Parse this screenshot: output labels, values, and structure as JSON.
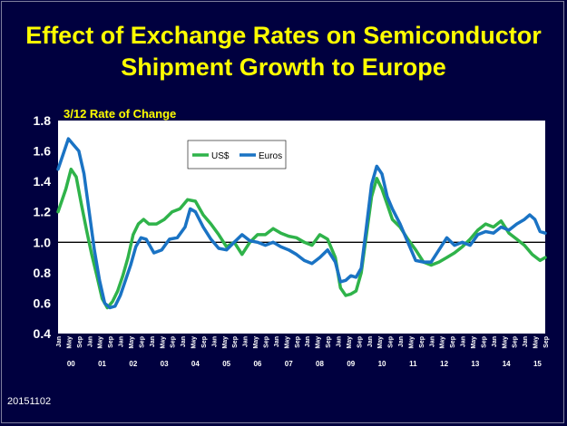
{
  "title_line1": "Effect of Exchange Rates on Semiconductor",
  "title_line2": "Shipment Growth to Europe",
  "footer_code": "20151102",
  "colors": {
    "background": "#00003f",
    "title": "#ffff00",
    "usd": "#2fb34a",
    "euros": "#1a73c4"
  },
  "chart_data": {
    "type": "line",
    "title": "Effect of Exchange Rates on Semiconductor Shipment Growth to Europe",
    "subtitle": "3/12 Rate of Change",
    "ylim": [
      0.4,
      1.8
    ],
    "yticks": [
      "0.4",
      "0.6",
      "0.8",
      "1.0",
      "1.2",
      "1.4",
      "1.6",
      "1.8"
    ],
    "reference_line": 1.0,
    "grid": false,
    "legend_position": "top-left",
    "month_labels": [
      "Jan",
      "May",
      "Sep"
    ],
    "years": [
      "00",
      "01",
      "02",
      "03",
      "04",
      "05",
      "06",
      "07",
      "08",
      "09",
      "10",
      "11",
      "12",
      "13",
      "14",
      "15"
    ],
    "x_start": "2000-01",
    "x_end": "2015-09",
    "series": [
      {
        "name": "US$",
        "points": [
          [
            "2000-01",
            1.2
          ],
          [
            "2000-04",
            1.35
          ],
          [
            "2000-06",
            1.48
          ],
          [
            "2000-08",
            1.43
          ],
          [
            "2000-10",
            1.25
          ],
          [
            "2000-12",
            1.08
          ],
          [
            "2001-02",
            0.92
          ],
          [
            "2001-04",
            0.78
          ],
          [
            "2001-06",
            0.63
          ],
          [
            "2001-08",
            0.57
          ],
          [
            "2001-10",
            0.61
          ],
          [
            "2001-12",
            0.68
          ],
          [
            "2002-02",
            0.78
          ],
          [
            "2002-04",
            0.9
          ],
          [
            "2002-06",
            1.05
          ],
          [
            "2002-08",
            1.12
          ],
          [
            "2002-10",
            1.15
          ],
          [
            "2002-12",
            1.12
          ],
          [
            "2003-03",
            1.12
          ],
          [
            "2003-06",
            1.15
          ],
          [
            "2003-09",
            1.2
          ],
          [
            "2003-12",
            1.22
          ],
          [
            "2004-03",
            1.28
          ],
          [
            "2004-06",
            1.27
          ],
          [
            "2004-09",
            1.18
          ],
          [
            "2004-12",
            1.12
          ],
          [
            "2005-03",
            1.05
          ],
          [
            "2005-06",
            0.97
          ],
          [
            "2005-09",
            1.0
          ],
          [
            "2005-12",
            0.92
          ],
          [
            "2006-03",
            1.0
          ],
          [
            "2006-06",
            1.05
          ],
          [
            "2006-09",
            1.05
          ],
          [
            "2006-12",
            1.09
          ],
          [
            "2007-03",
            1.06
          ],
          [
            "2007-06",
            1.04
          ],
          [
            "2007-09",
            1.03
          ],
          [
            "2007-12",
            1.0
          ],
          [
            "2008-03",
            0.98
          ],
          [
            "2008-06",
            1.05
          ],
          [
            "2008-09",
            1.02
          ],
          [
            "2008-12",
            0.9
          ],
          [
            "2009-02",
            0.7
          ],
          [
            "2009-04",
            0.65
          ],
          [
            "2009-06",
            0.66
          ],
          [
            "2009-08",
            0.68
          ],
          [
            "2009-10",
            0.8
          ],
          [
            "2009-12",
            1.05
          ],
          [
            "2010-02",
            1.3
          ],
          [
            "2010-04",
            1.42
          ],
          [
            "2010-06",
            1.35
          ],
          [
            "2010-08",
            1.25
          ],
          [
            "2010-10",
            1.15
          ],
          [
            "2011-01",
            1.1
          ],
          [
            "2011-04",
            1.02
          ],
          [
            "2011-07",
            0.95
          ],
          [
            "2011-10",
            0.87
          ],
          [
            "2012-01",
            0.85
          ],
          [
            "2012-04",
            0.87
          ],
          [
            "2012-07",
            0.9
          ],
          [
            "2012-10",
            0.93
          ],
          [
            "2013-01",
            0.97
          ],
          [
            "2013-04",
            1.02
          ],
          [
            "2013-07",
            1.08
          ],
          [
            "2013-10",
            1.12
          ],
          [
            "2014-01",
            1.1
          ],
          [
            "2014-04",
            1.14
          ],
          [
            "2014-07",
            1.06
          ],
          [
            "2014-10",
            1.02
          ],
          [
            "2015-01",
            0.98
          ],
          [
            "2015-04",
            0.92
          ],
          [
            "2015-07",
            0.88
          ],
          [
            "2015-09",
            0.9
          ]
        ]
      },
      {
        "name": "Euros",
        "points": [
          [
            "2000-01",
            1.48
          ],
          [
            "2000-03",
            1.58
          ],
          [
            "2000-05",
            1.68
          ],
          [
            "2000-07",
            1.64
          ],
          [
            "2000-09",
            1.6
          ],
          [
            "2000-11",
            1.45
          ],
          [
            "2001-01",
            1.2
          ],
          [
            "2001-03",
            0.95
          ],
          [
            "2001-05",
            0.75
          ],
          [
            "2001-07",
            0.6
          ],
          [
            "2001-09",
            0.57
          ],
          [
            "2001-11",
            0.58
          ],
          [
            "2002-01",
            0.65
          ],
          [
            "2002-03",
            0.75
          ],
          [
            "2002-05",
            0.85
          ],
          [
            "2002-07",
            0.97
          ],
          [
            "2002-09",
            1.03
          ],
          [
            "2002-11",
            1.02
          ],
          [
            "2003-02",
            0.93
          ],
          [
            "2003-05",
            0.95
          ],
          [
            "2003-08",
            1.02
          ],
          [
            "2003-11",
            1.03
          ],
          [
            "2004-02",
            1.1
          ],
          [
            "2004-04",
            1.22
          ],
          [
            "2004-06",
            1.2
          ],
          [
            "2004-09",
            1.1
          ],
          [
            "2004-12",
            1.02
          ],
          [
            "2005-03",
            0.96
          ],
          [
            "2005-06",
            0.95
          ],
          [
            "2005-09",
            1.0
          ],
          [
            "2005-12",
            1.05
          ],
          [
            "2006-03",
            1.01
          ],
          [
            "2006-06",
            1.0
          ],
          [
            "2006-09",
            0.98
          ],
          [
            "2006-12",
            1.0
          ],
          [
            "2007-03",
            0.97
          ],
          [
            "2007-06",
            0.95
          ],
          [
            "2007-09",
            0.92
          ],
          [
            "2007-12",
            0.88
          ],
          [
            "2008-03",
            0.86
          ],
          [
            "2008-06",
            0.9
          ],
          [
            "2008-09",
            0.95
          ],
          [
            "2008-12",
            0.87
          ],
          [
            "2009-02",
            0.74
          ],
          [
            "2009-04",
            0.75
          ],
          [
            "2009-06",
            0.78
          ],
          [
            "2009-08",
            0.77
          ],
          [
            "2009-10",
            0.83
          ],
          [
            "2009-12",
            1.1
          ],
          [
            "2010-02",
            1.38
          ],
          [
            "2010-04",
            1.5
          ],
          [
            "2010-06",
            1.45
          ],
          [
            "2010-08",
            1.3
          ],
          [
            "2010-10",
            1.22
          ],
          [
            "2011-01",
            1.12
          ],
          [
            "2011-04",
            1.0
          ],
          [
            "2011-07",
            0.88
          ],
          [
            "2011-10",
            0.87
          ],
          [
            "2012-01",
            0.87
          ],
          [
            "2012-04",
            0.95
          ],
          [
            "2012-07",
            1.03
          ],
          [
            "2012-10",
            0.98
          ],
          [
            "2013-01",
            1.0
          ],
          [
            "2013-04",
            0.98
          ],
          [
            "2013-07",
            1.05
          ],
          [
            "2013-10",
            1.07
          ],
          [
            "2014-01",
            1.06
          ],
          [
            "2014-04",
            1.1
          ],
          [
            "2014-07",
            1.08
          ],
          [
            "2014-10",
            1.12
          ],
          [
            "2015-01",
            1.15
          ],
          [
            "2015-03",
            1.18
          ],
          [
            "2015-05",
            1.15
          ],
          [
            "2015-07",
            1.07
          ],
          [
            "2015-09",
            1.06
          ]
        ]
      }
    ]
  }
}
